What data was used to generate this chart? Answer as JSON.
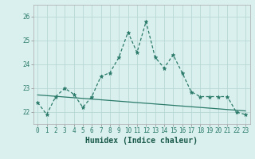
{
  "xlabel": "Humidex (Indice chaleur)",
  "x": [
    0,
    1,
    2,
    3,
    4,
    5,
    6,
    7,
    8,
    9,
    10,
    11,
    12,
    13,
    14,
    15,
    16,
    17,
    18,
    19,
    20,
    21,
    22,
    23
  ],
  "y_main": [
    22.4,
    21.9,
    22.65,
    23.0,
    22.75,
    22.2,
    22.65,
    23.5,
    23.65,
    24.3,
    25.35,
    24.5,
    25.8,
    24.3,
    23.85,
    24.4,
    23.65,
    22.85,
    22.65,
    22.65,
    22.65,
    22.65,
    22.0,
    21.9
  ],
  "y_trend_start": 22.72,
  "y_trend_end": 22.05,
  "line_color": "#2a7a6a",
  "bg_color": "#daf0ee",
  "grid_color": "#b8d8d4",
  "ylim": [
    21.5,
    26.5
  ],
  "yticks": [
    22,
    23,
    24,
    25,
    26
  ],
  "xlim": [
    -0.5,
    23.5
  ],
  "xlabel_fontsize": 7,
  "tick_fontsize": 5.5
}
